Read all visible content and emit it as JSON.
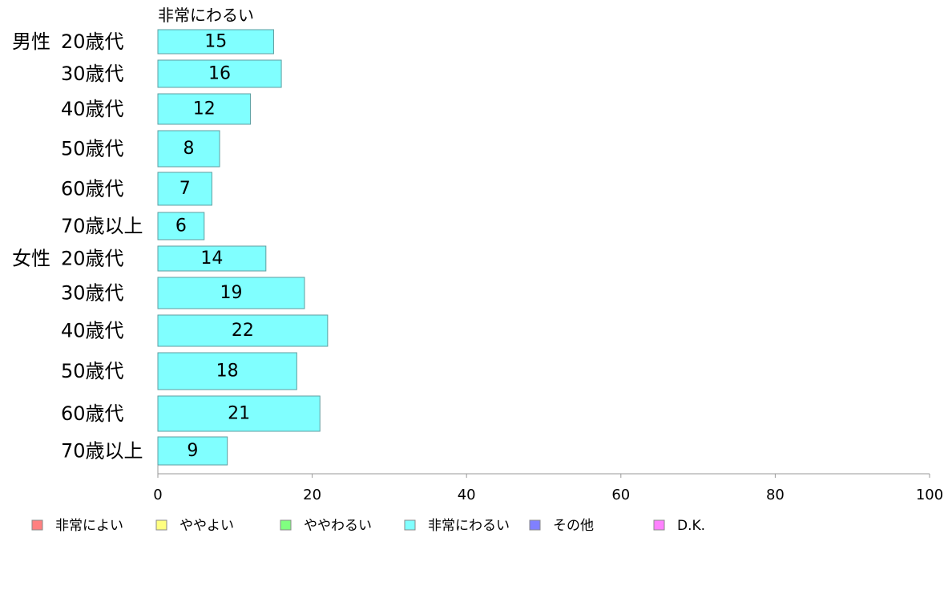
{
  "chart_data": {
    "type": "bar",
    "orientation": "horizontal",
    "series_label": "非常にわるい",
    "groups": [
      {
        "label": "男性",
        "start": 0
      },
      {
        "label": "女性",
        "start": 6
      }
    ],
    "categories": [
      "20歳代",
      "30歳代",
      "40歳代",
      "50歳代",
      "60歳代",
      "70歳以上",
      "20歳代",
      "30歳代",
      "40歳代",
      "50歳代",
      "60歳代",
      "70歳以上"
    ],
    "values": [
      15,
      16,
      12,
      8,
      7,
      6,
      14,
      19,
      22,
      18,
      21,
      9
    ],
    "xlim": [
      0,
      100
    ],
    "xticks": [
      0,
      20,
      40,
      60,
      80,
      100
    ],
    "bar_color": "#80FFFF",
    "bar_border_color": "#5F9EA0",
    "grid": false,
    "legend": {
      "position": "bottom",
      "items": [
        {
          "label": "非常によい",
          "color": "#FF8080"
        },
        {
          "label": "ややよい",
          "color": "#FFFF80"
        },
        {
          "label": "ややわるい",
          "color": "#80FF80"
        },
        {
          "label": "非常にわるい",
          "color": "#80FFFF"
        },
        {
          "label": "その他",
          "color": "#8080FF"
        },
        {
          "label": "D.K.",
          "color": "#FF80FF"
        }
      ]
    }
  }
}
